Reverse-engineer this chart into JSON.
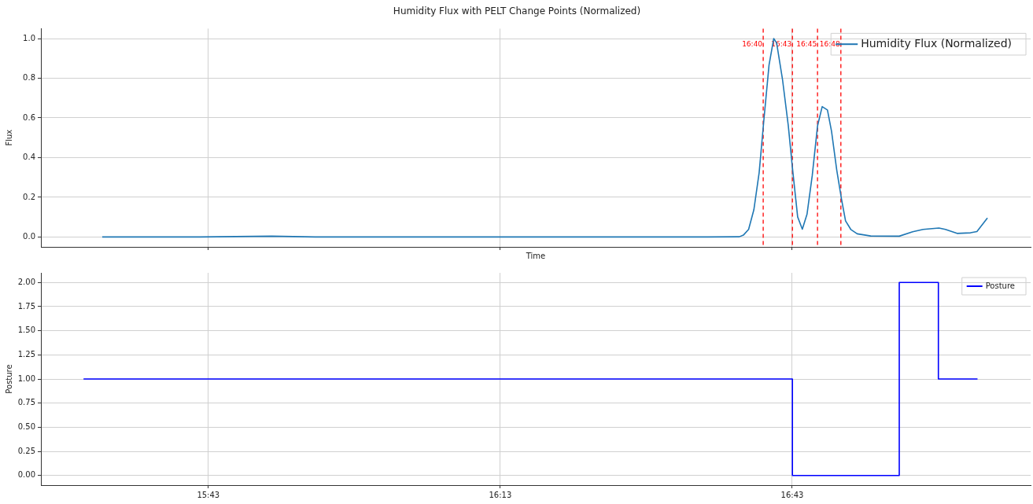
{
  "chart_data": [
    {
      "type": "line",
      "title": "Humidity Flux with PELT Change Points (Normalized)",
      "xlabel": "Time",
      "ylabel": "Flux",
      "xlim": [
        15.43,
        17.125
      ],
      "xticks": [
        {
          "value": 15.7167,
          "label": null
        },
        {
          "value": 16.2167,
          "label": null
        },
        {
          "value": 16.7167,
          "label": null
        }
      ],
      "ylim": [
        -0.05,
        1.05
      ],
      "yticks": [
        {
          "value": 0,
          "label": "0.0"
        },
        {
          "value": 0.2,
          "label": "0.2"
        },
        {
          "value": 0.4,
          "label": "0.4"
        },
        {
          "value": 0.6,
          "label": "0.6"
        },
        {
          "value": 0.8,
          "label": "0.8"
        },
        {
          "value": 1,
          "label": "1.0"
        }
      ],
      "tick_labels": "y",
      "grid": true,
      "legend": "top right",
      "marker": "none",
      "line_style": "solid",
      "series": [
        {
          "name": "Humidity Flux (Normalized)",
          "color": "#1f77b4",
          "x": [
            15.535,
            15.7,
            15.825,
            15.9,
            16.2,
            16.5,
            16.572,
            16.626,
            16.633,
            16.642,
            16.651,
            16.66,
            16.668,
            16.677,
            16.685,
            16.69,
            16.7,
            16.71,
            16.717,
            16.726,
            16.734,
            16.742,
            16.751,
            16.76,
            16.768,
            16.777,
            16.784,
            16.793,
            16.801,
            16.808,
            16.817,
            16.828,
            16.851,
            16.9,
            16.923,
            16.941,
            16.968,
            16.979,
            16.999,
            17.022,
            17.033,
            17.051
          ],
          "values": [
            0.0,
            0.0,
            0.004,
            0.0,
            0.0,
            0.0,
            0.0,
            0.001,
            0.009,
            0.038,
            0.137,
            0.323,
            0.585,
            0.867,
            1.0,
            0.978,
            0.795,
            0.56,
            0.35,
            0.101,
            0.039,
            0.114,
            0.31,
            0.559,
            0.657,
            0.64,
            0.533,
            0.336,
            0.192,
            0.081,
            0.038,
            0.016,
            0.005,
            0.004,
            0.026,
            0.038,
            0.045,
            0.038,
            0.018,
            0.021,
            0.027,
            0.096
          ]
        }
      ],
      "ref_lines": [
        {
          "axis": "x",
          "value": 16.667,
          "color": "#ff0000",
          "line_style": "dashed"
        },
        {
          "axis": "x",
          "value": 16.717,
          "color": "#ff0000",
          "line_style": "dashed"
        },
        {
          "axis": "x",
          "value": 16.76,
          "color": "#ff0000",
          "line_style": "dashed"
        },
        {
          "axis": "x",
          "value": 16.8,
          "color": "#ff0000",
          "line_style": "dashed"
        }
      ],
      "annotations": [
        {
          "text": "16:40",
          "x": 16.667,
          "y": 0.97
        },
        {
          "text": "16:43",
          "x": 16.717,
          "y": 0.97
        },
        {
          "text": "16:45",
          "x": 16.76,
          "y": 0.97
        },
        {
          "text": "16:48",
          "x": 16.8,
          "y": 0.97
        }
      ]
    },
    {
      "type": "step",
      "ylabel": "Posture",
      "xlim": [
        15.43,
        17.125
      ],
      "xticks": [
        {
          "value": 15.7167,
          "label": "15:43"
        },
        {
          "value": 16.2167,
          "label": "16:13"
        },
        {
          "value": 16.7167,
          "label": "16:43"
        }
      ],
      "ylim": [
        -0.1,
        2.1
      ],
      "yticks": [
        {
          "value": 0,
          "label": "0.00"
        },
        {
          "value": 0.25,
          "label": "0.25"
        },
        {
          "value": 0.5,
          "label": "0.50"
        },
        {
          "value": 0.75,
          "label": "0.75"
        },
        {
          "value": 1,
          "label": "1.00"
        },
        {
          "value": 1.25,
          "label": "1.25"
        },
        {
          "value": 1.5,
          "label": "1.50"
        },
        {
          "value": 1.75,
          "label": "1.75"
        },
        {
          "value": 2,
          "label": "2.00"
        }
      ],
      "grid": true,
      "legend": "top right",
      "marker": "none",
      "line_style": "solid",
      "series": [
        {
          "name": "Posture",
          "color": "#0000ff",
          "x": [
            15.503,
            16.717,
            16.9,
            16.967,
            17.034
          ],
          "values": [
            1,
            0,
            2,
            1,
            1
          ]
        }
      ]
    }
  ]
}
